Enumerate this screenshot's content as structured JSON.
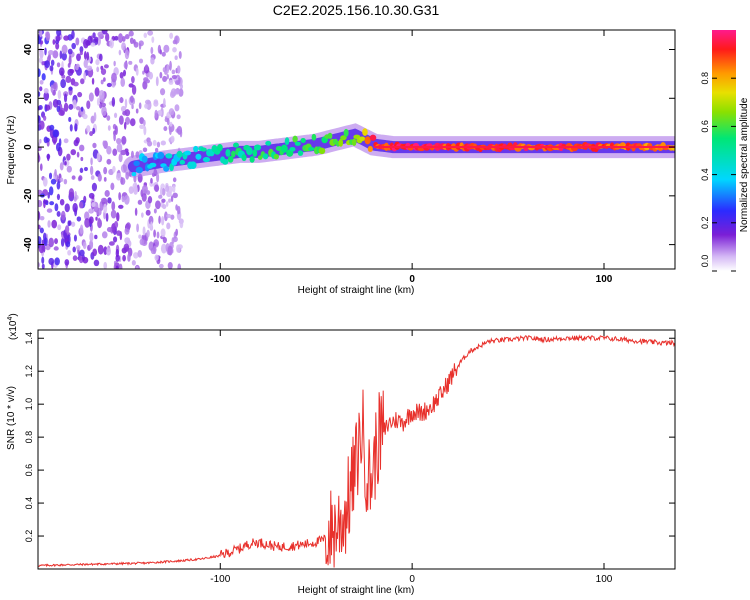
{
  "title": "C2E2.2025.156.10.30.G31",
  "chart_data": [
    {
      "type": "heatmap",
      "panel": "spectrogram",
      "xlabel": "Height of straight line (km)",
      "ylabel": "Frequency (Hz)",
      "xlim": [
        -195,
        137
      ],
      "ylim": [
        -50,
        48
      ],
      "xticks": [
        -100,
        0,
        100
      ],
      "yticks": [
        -40,
        -20,
        0,
        20,
        40
      ],
      "ridge": {
        "x": [
          -145,
          -130,
          -120,
          -110,
          -100,
          -90,
          -80,
          -70,
          -60,
          -50,
          -40,
          -30,
          -25,
          -20,
          -10,
          0,
          20,
          60,
          100,
          137
        ],
        "freq": [
          -8,
          -6,
          -5,
          -4,
          -3,
          -2,
          -2,
          -1,
          0,
          1,
          3,
          5,
          3,
          1,
          0,
          0,
          0,
          0,
          0,
          0
        ],
        "amplitude": [
          0.35,
          0.4,
          0.45,
          0.45,
          0.5,
          0.5,
          0.55,
          0.55,
          0.55,
          0.6,
          0.6,
          0.65,
          0.8,
          0.9,
          0.95,
          0.95,
          0.9,
          0.9,
          0.9,
          0.85
        ]
      },
      "noise_region": [
        -195,
        -120
      ],
      "colorbar": {
        "label": "Normalized spectral amplitude",
        "ticks": [
          "0.0",
          "0.2",
          "0.4",
          "0.6",
          "0.8"
        ],
        "tick_values": [
          0.0,
          0.2,
          0.4,
          0.6,
          0.8
        ],
        "range": [
          0.0,
          1.0
        ]
      }
    },
    {
      "type": "line",
      "panel": "snr",
      "xlabel": "Height of straight line (km)",
      "ylabel": "SNR (10 * v/v)",
      "exponent_label": "(x10",
      "exponent_power": "4",
      "exponent_close": ")",
      "xlim": [
        -195,
        137
      ],
      "ylim": [
        0.0,
        1.45
      ],
      "xticks": [
        -100,
        0,
        100
      ],
      "yticks": [
        "0.2",
        "0.4",
        "0.6",
        "0.8",
        "1.0",
        "1.2",
        "1.4"
      ],
      "ytick_values": [
        0.2,
        0.4,
        0.6,
        0.8,
        1.0,
        1.2,
        1.4
      ],
      "series": [
        {
          "name": "SNR",
          "color": "#e8312c",
          "x": [
            -195,
            -180,
            -160,
            -140,
            -120,
            -110,
            -100,
            -95,
            -90,
            -85,
            -80,
            -70,
            -60,
            -50,
            -45,
            -40,
            -35,
            -32,
            -30,
            -28,
            -26,
            -24,
            -22,
            -20,
            -18,
            -15,
            -12,
            -8,
            -5,
            0,
            5,
            10,
            15,
            20,
            25,
            30,
            35,
            40,
            50,
            60,
            70,
            80,
            90,
            100,
            110,
            120,
            130,
            137
          ],
          "y": [
            0.02,
            0.025,
            0.03,
            0.035,
            0.05,
            0.06,
            0.08,
            0.1,
            0.12,
            0.15,
            0.16,
            0.13,
            0.14,
            0.16,
            0.18,
            0.22,
            0.3,
            0.45,
            0.55,
            0.7,
            0.85,
            0.6,
            0.5,
            0.6,
            0.75,
            0.82,
            0.88,
            0.9,
            0.88,
            0.95,
            0.94,
            0.98,
            1.05,
            1.15,
            1.25,
            1.32,
            1.35,
            1.38,
            1.39,
            1.4,
            1.39,
            1.4,
            1.4,
            1.4,
            1.39,
            1.38,
            1.37,
            1.37
          ]
        }
      ]
    }
  ]
}
